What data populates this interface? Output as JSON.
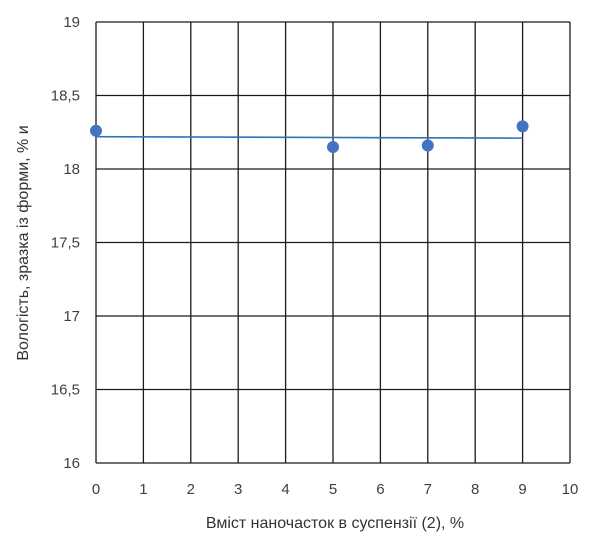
{
  "chart_data": {
    "type": "scatter",
    "title": "",
    "xlabel": "Вміст наночасток в суспензії (2), %",
    "ylabel": "Вологість, зразка із форми, % и",
    "xlim": [
      0,
      10
    ],
    "ylim": [
      16,
      19
    ],
    "x_ticks": [
      0,
      1,
      2,
      3,
      4,
      5,
      6,
      7,
      8,
      9,
      10
    ],
    "y_ticks": [
      16,
      16.5,
      17,
      17.5,
      18,
      18.5,
      19
    ],
    "x_tick_labels": [
      "0",
      "1",
      "2",
      "3",
      "4",
      "5",
      "6",
      "7",
      "8",
      "9",
      "10"
    ],
    "y_tick_labels": [
      "16",
      "16,5",
      "17",
      "17,5",
      "18",
      "18,5",
      "19"
    ],
    "grid": true,
    "legend": "none",
    "series": [
      {
        "x": [
          0,
          5,
          7,
          9
        ],
        "y": [
          18.26,
          18.15,
          18.16,
          18.29
        ],
        "color": "#4472C4"
      }
    ],
    "trendline": {
      "x": [
        0,
        9
      ],
      "y": [
        18.22,
        18.21
      ],
      "color": "#2E75B6"
    }
  }
}
